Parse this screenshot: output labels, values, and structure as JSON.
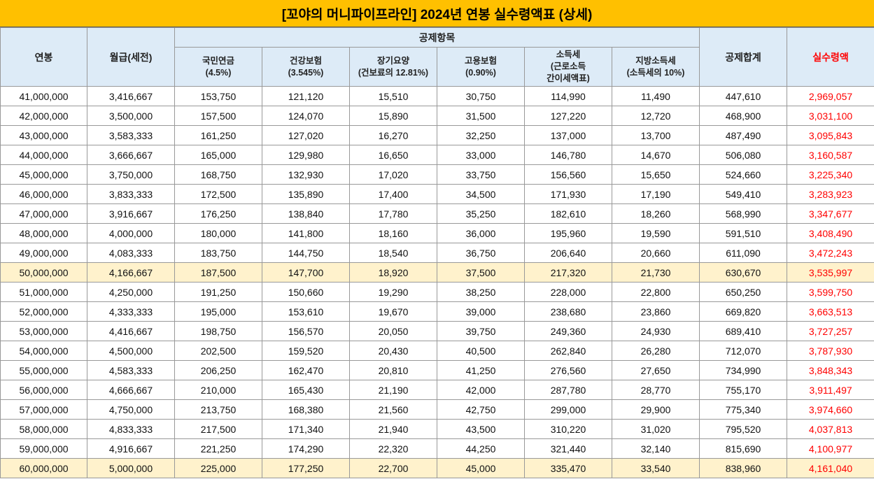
{
  "header": {
    "title": "[꼬야의 머니파이프라인] 2024년 연봉 실수령액표 (상세)"
  },
  "table": {
    "headers": {
      "salary": "연봉",
      "monthly": "월급(세전)",
      "group": "공제항목",
      "subs": [
        [
          "국민연금",
          "(4.5%)"
        ],
        [
          "건강보험",
          "(3.545%)"
        ],
        [
          "장기요양",
          "(건보료의 12.81%)"
        ],
        [
          "고용보험",
          "(0.90%)"
        ],
        [
          "소득세",
          "(근로소득",
          "간이세액표)"
        ],
        [
          "지방소득세",
          "(소득세의 10%)"
        ]
      ],
      "total": "공제합계",
      "net": "실수령액"
    },
    "highlighted_rows": [
      9,
      19
    ],
    "rows": [
      [
        "41,000,000",
        "3,416,667",
        "153,750",
        "121,120",
        "15,510",
        "30,750",
        "114,990",
        "11,490",
        "447,610",
        "2,969,057"
      ],
      [
        "42,000,000",
        "3,500,000",
        "157,500",
        "124,070",
        "15,890",
        "31,500",
        "127,220",
        "12,720",
        "468,900",
        "3,031,100"
      ],
      [
        "43,000,000",
        "3,583,333",
        "161,250",
        "127,020",
        "16,270",
        "32,250",
        "137,000",
        "13,700",
        "487,490",
        "3,095,843"
      ],
      [
        "44,000,000",
        "3,666,667",
        "165,000",
        "129,980",
        "16,650",
        "33,000",
        "146,780",
        "14,670",
        "506,080",
        "3,160,587"
      ],
      [
        "45,000,000",
        "3,750,000",
        "168,750",
        "132,930",
        "17,020",
        "33,750",
        "156,560",
        "15,650",
        "524,660",
        "3,225,340"
      ],
      [
        "46,000,000",
        "3,833,333",
        "172,500",
        "135,890",
        "17,400",
        "34,500",
        "171,930",
        "17,190",
        "549,410",
        "3,283,923"
      ],
      [
        "47,000,000",
        "3,916,667",
        "176,250",
        "138,840",
        "17,780",
        "35,250",
        "182,610",
        "18,260",
        "568,990",
        "3,347,677"
      ],
      [
        "48,000,000",
        "4,000,000",
        "180,000",
        "141,800",
        "18,160",
        "36,000",
        "195,960",
        "19,590",
        "591,510",
        "3,408,490"
      ],
      [
        "49,000,000",
        "4,083,333",
        "183,750",
        "144,750",
        "18,540",
        "36,750",
        "206,640",
        "20,660",
        "611,090",
        "3,472,243"
      ],
      [
        "50,000,000",
        "4,166,667",
        "187,500",
        "147,700",
        "18,920",
        "37,500",
        "217,320",
        "21,730",
        "630,670",
        "3,535,997"
      ],
      [
        "51,000,000",
        "4,250,000",
        "191,250",
        "150,660",
        "19,290",
        "38,250",
        "228,000",
        "22,800",
        "650,250",
        "3,599,750"
      ],
      [
        "52,000,000",
        "4,333,333",
        "195,000",
        "153,610",
        "19,670",
        "39,000",
        "238,680",
        "23,860",
        "669,820",
        "3,663,513"
      ],
      [
        "53,000,000",
        "4,416,667",
        "198,750",
        "156,570",
        "20,050",
        "39,750",
        "249,360",
        "24,930",
        "689,410",
        "3,727,257"
      ],
      [
        "54,000,000",
        "4,500,000",
        "202,500",
        "159,520",
        "20,430",
        "40,500",
        "262,840",
        "26,280",
        "712,070",
        "3,787,930"
      ],
      [
        "55,000,000",
        "4,583,333",
        "206,250",
        "162,470",
        "20,810",
        "41,250",
        "276,560",
        "27,650",
        "734,990",
        "3,848,343"
      ],
      [
        "56,000,000",
        "4,666,667",
        "210,000",
        "165,430",
        "21,190",
        "42,000",
        "287,780",
        "28,770",
        "755,170",
        "3,911,497"
      ],
      [
        "57,000,000",
        "4,750,000",
        "213,750",
        "168,380",
        "21,560",
        "42,750",
        "299,000",
        "29,900",
        "775,340",
        "3,974,660"
      ],
      [
        "58,000,000",
        "4,833,333",
        "217,500",
        "171,340",
        "21,940",
        "43,500",
        "310,220",
        "31,020",
        "795,520",
        "4,037,813"
      ],
      [
        "59,000,000",
        "4,916,667",
        "221,250",
        "174,290",
        "22,320",
        "44,250",
        "321,440",
        "32,140",
        "815,690",
        "4,100,977"
      ],
      [
        "60,000,000",
        "5,000,000",
        "225,000",
        "177,250",
        "22,700",
        "45,000",
        "335,470",
        "33,540",
        "838,960",
        "4,161,040"
      ]
    ]
  }
}
